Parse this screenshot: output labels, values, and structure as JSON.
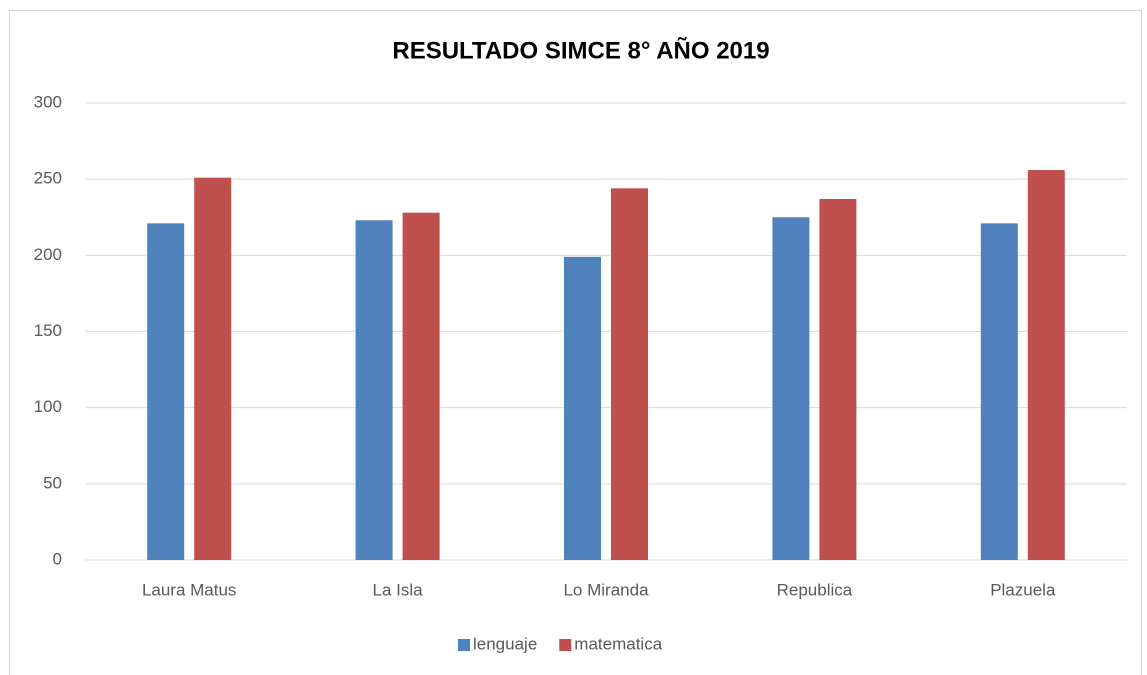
{
  "chart_data": {
    "type": "bar",
    "title": "RESULTADO SIMCE 8° AÑO 2019",
    "categories": [
      "Laura Matus",
      "La Isla",
      "Lo Miranda",
      "Republica",
      "Plazuela"
    ],
    "series": [
      {
        "name": "lenguaje",
        "color": "#4f81bd",
        "values": [
          221,
          223,
          199,
          225,
          221
        ]
      },
      {
        "name": "matematica",
        "color": "#c0504d",
        "values": [
          251,
          228,
          244,
          237,
          256
        ]
      }
    ],
    "ylim": [
      0,
      300
    ],
    "yticks": [
      0,
      50,
      100,
      150,
      200,
      250,
      300
    ],
    "grid": true,
    "legend": "bottom"
  }
}
